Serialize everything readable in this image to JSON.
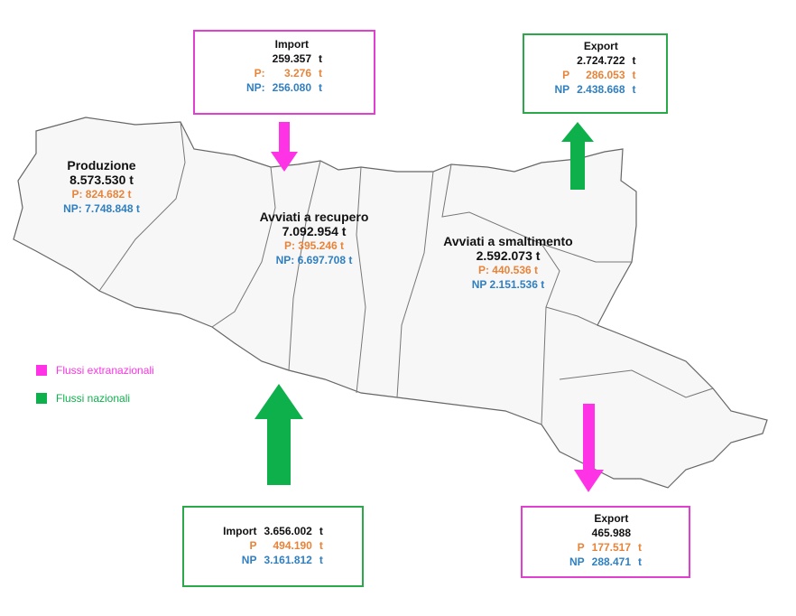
{
  "colors": {
    "extranational": "#ff33e6",
    "national": "#0db04b",
    "p": "#e8843a",
    "np": "#2f7fc1"
  },
  "import_top": {
    "title": "Import",
    "total": "259.357",
    "p_label": "P:",
    "p": "3.276",
    "np_label": "NP:",
    "np": "256.080",
    "unit": "t"
  },
  "export_top": {
    "title": "Export",
    "total": "2.724.722",
    "p_label": "P",
    "p": "286.053",
    "np_label": "NP",
    "np": "2.438.668",
    "unit": "t"
  },
  "import_bottom": {
    "title": "Import",
    "total": "3.656.002",
    "p_label": "P",
    "p": "494.190",
    "np_label": "NP",
    "np": "3.161.812",
    "unit": "t"
  },
  "export_bottom": {
    "title": "Export",
    "total": "465.988",
    "p_label": "P",
    "p": "177.517",
    "np_label": "NP",
    "np": "288.471",
    "unit": "t"
  },
  "produzione": {
    "title": "Produzione",
    "total": "8.573.530 t",
    "p": "P: 824.682 t",
    "np": "NP: 7.748.848 t"
  },
  "recupero": {
    "title": "Avviati a recupero",
    "total": "7.092.954 t",
    "p": "P: 395.246 t",
    "np": "NP: 6.697.708 t"
  },
  "smaltimento": {
    "title": "Avviati a smaltimento",
    "total": "2.592.073 t",
    "p": "P: 440.536 t",
    "np": "NP 2.151.536 t"
  },
  "legend": {
    "extranational": "Flussi extranazionali",
    "national": "Flussi nazionali"
  }
}
